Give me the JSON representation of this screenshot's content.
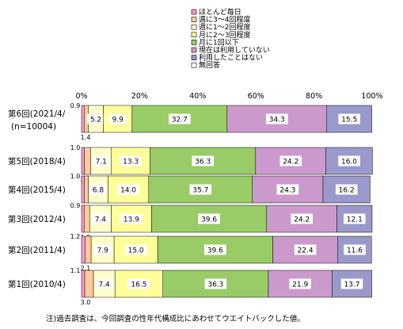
{
  "chart_data": {
    "type": "bar",
    "orientation": "horizontal",
    "stacked": true,
    "percent_scale": true,
    "xlim": [
      0,
      100
    ],
    "legend_placement": "top",
    "grid": false,
    "x_ticks": [
      "0%",
      "20%",
      "40%",
      "60%",
      "80%",
      "100%"
    ],
    "categories": [
      "第6回(2021/4/",
      "第5回(2018/4)",
      "第4回(2015/4)",
      "第3回(2012/4)",
      "第2回(2011/4)",
      "第1回(2010/4)"
    ],
    "category_sublabels": [
      "(n=10004)",
      "",
      "",
      "",
      "",
      ""
    ],
    "series": [
      {
        "name": "ほとんど毎日",
        "color": "#ff99cc",
        "values": [
          0.9,
          1.0,
          1.0,
          0.9,
          1.2,
          1.1
        ]
      },
      {
        "name": "週に3～4回程度",
        "color": "#ffcc99",
        "values": [
          1.4,
          2.2,
          1.3,
          1.9,
          2.1,
          3.0
        ]
      },
      {
        "name": "週に1～2回程度",
        "color": "#ffffcc",
        "values": [
          5.2,
          7.1,
          6.8,
          7.4,
          7.9,
          7.4
        ]
      },
      {
        "name": "月に2～3回程度",
        "color": "#ffff99",
        "values": [
          9.9,
          13.3,
          14.0,
          13.9,
          15.0,
          16.5
        ]
      },
      {
        "name": "月に1回以下",
        "color": "#99cc66",
        "values": [
          32.7,
          36.3,
          35.7,
          39.6,
          39.6,
          36.3
        ]
      },
      {
        "name": "現在は利用していない",
        "color": "#cc99cc",
        "values": [
          34.3,
          24.2,
          24.3,
          24.2,
          22.4,
          21.9
        ]
      },
      {
        "name": "利用したことはない",
        "color": "#9999cc",
        "values": [
          15.5,
          16.0,
          16.2,
          12.1,
          11.6,
          13.7
        ]
      },
      {
        "name": "無回答",
        "color": "#ffffff",
        "values": [
          0.0,
          0.0,
          0.0,
          0.0,
          0.0,
          0.0
        ]
      }
    ]
  },
  "footnote": "注)過去調査は、今回調査の性年代構成比にあわせてウエイトバックした値。"
}
